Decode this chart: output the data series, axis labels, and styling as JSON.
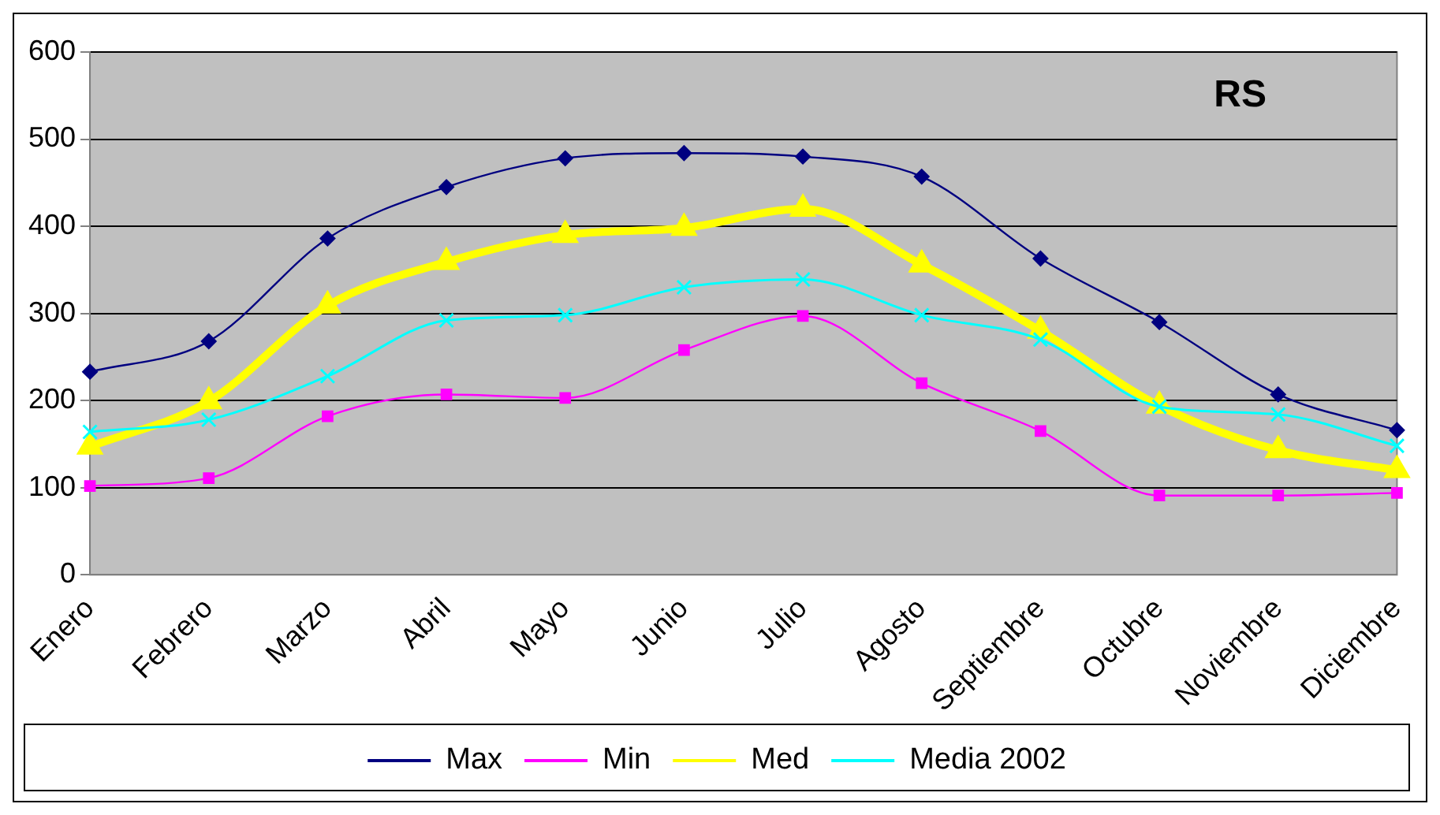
{
  "chart_data": {
    "type": "line",
    "title": "RS",
    "categories": [
      "Enero",
      "Febrero",
      "Marzo",
      "Abril",
      "Mayo",
      "Junio",
      "Julio",
      "Agosto",
      "Septiembre",
      "Octubre",
      "Noviembre",
      "Diciembre"
    ],
    "series": [
      {
        "name": "Max",
        "color": "#000080",
        "marker": "diamond",
        "values": [
          233,
          268,
          386,
          445,
          478,
          484,
          480,
          457,
          363,
          290,
          207,
          166
        ]
      },
      {
        "name": "Min",
        "color": "#ff00ff",
        "marker": "square",
        "values": [
          102,
          111,
          182,
          207,
          203,
          258,
          297,
          220,
          165,
          91,
          91,
          94
        ]
      },
      {
        "name": "Med",
        "color": "#ffff00",
        "marker": "triangle",
        "values": [
          147,
          199,
          309,
          359,
          390,
          398,
          420,
          356,
          280,
          194,
          143,
          120
        ]
      },
      {
        "name": "Media 2002",
        "color": "#00ffff",
        "marker": "cross",
        "values": [
          164,
          178,
          228,
          292,
          298,
          330,
          339,
          298,
          270,
          193,
          184,
          148
        ]
      }
    ],
    "ylim": [
      0,
      600
    ],
    "yticks": [
      0,
      100,
      200,
      300,
      400,
      500,
      600
    ],
    "grid": "y",
    "legend": "bottom"
  }
}
